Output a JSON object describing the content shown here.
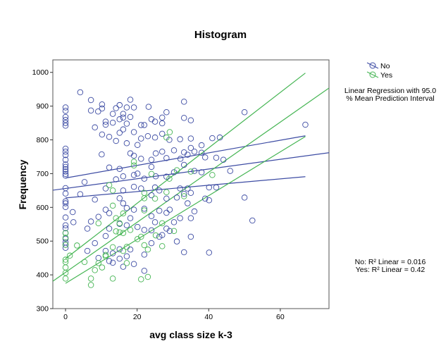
{
  "chart_data": {
    "type": "scatter",
    "title": "Histogram",
    "xlabel": "avg class size k-3",
    "ylabel": "Frequency",
    "xlim": [
      -3.55,
      73.6
    ],
    "ylim": [
      300,
      1037
    ],
    "xticks": [
      0,
      20,
      40,
      60
    ],
    "yticks": [
      300,
      400,
      500,
      600,
      700,
      800,
      900,
      1000
    ],
    "grid": false,
    "legend_placement": "top-right",
    "fit_legend": "Linear Regression with 95.0\n% Mean Prediction Interval",
    "r2_annotations": [
      "No: R² Linear = 0.016",
      "Yes: R² Linear = 0.42"
    ],
    "series": [
      {
        "name": "No",
        "color": "#3c4ba3",
        "marker": "open-circle",
        "fit": {
          "intercept": 656,
          "slope": 1.44,
          "ci_lower": [
            [
              0,
              628
            ],
            [
              67,
              691
            ]
          ],
          "ci_upper": [
            [
              0,
              687
            ],
            [
              67,
              812
            ]
          ]
        },
        "points": [
          [
            0,
            896
          ],
          [
            0,
            886
          ],
          [
            0,
            868
          ],
          [
            0,
            859
          ],
          [
            0,
            850
          ],
          [
            0,
            842
          ],
          [
            0,
            774
          ],
          [
            0,
            765
          ],
          [
            0,
            755
          ],
          [
            0,
            741
          ],
          [
            0,
            727
          ],
          [
            0,
            720
          ],
          [
            0,
            713
          ],
          [
            0,
            706
          ],
          [
            0,
            699
          ],
          [
            0,
            694
          ],
          [
            0,
            657
          ],
          [
            0,
            641
          ],
          [
            0,
            618
          ],
          [
            0,
            612
          ],
          [
            0,
            601
          ],
          [
            0,
            570
          ],
          [
            0,
            547
          ],
          [
            0,
            538
          ],
          [
            0,
            524
          ],
          [
            0,
            507
          ],
          [
            0,
            496
          ],
          [
            0,
            489
          ],
          [
            0,
            480
          ],
          [
            4.1,
            941
          ],
          [
            7.1,
            918
          ],
          [
            7.1,
            887
          ],
          [
            9.1,
            884
          ],
          [
            10.2,
            905
          ],
          [
            10.2,
            893
          ],
          [
            8.2,
            837
          ],
          [
            10.2,
            816
          ],
          [
            12.2,
            809
          ],
          [
            11.2,
            854
          ],
          [
            11.2,
            845
          ],
          [
            13.2,
            877
          ],
          [
            13.2,
            851
          ],
          [
            14.1,
            797
          ],
          [
            15.1,
            903
          ],
          [
            14.1,
            894
          ],
          [
            15.1,
            861
          ],
          [
            16.1,
            877
          ],
          [
            16.1,
            866
          ],
          [
            17.1,
            896
          ],
          [
            18.1,
            919
          ],
          [
            18.1,
            868
          ],
          [
            17.1,
            848
          ],
          [
            19.1,
            896
          ],
          [
            19.1,
            823
          ],
          [
            15.1,
            821
          ],
          [
            16.1,
            831
          ],
          [
            21.1,
            844
          ],
          [
            22,
            844
          ],
          [
            23.2,
            898
          ],
          [
            24,
            861
          ],
          [
            25,
            854
          ],
          [
            21.1,
            804
          ],
          [
            23,
            811
          ],
          [
            25,
            807
          ],
          [
            27,
            866
          ],
          [
            27,
            849
          ],
          [
            28.2,
            882
          ],
          [
            27,
            818
          ],
          [
            29,
            800
          ],
          [
            33.1,
            913
          ],
          [
            33.1,
            865
          ],
          [
            35,
            858
          ],
          [
            32,
            802
          ],
          [
            35,
            804
          ],
          [
            41,
            805
          ],
          [
            43.1,
            807
          ],
          [
            50,
            882
          ],
          [
            67,
            845
          ],
          [
            10.1,
            757
          ],
          [
            17.1,
            790
          ],
          [
            18.1,
            760
          ],
          [
            19.1,
            753
          ],
          [
            20.1,
            785
          ],
          [
            21.1,
            744
          ],
          [
            24,
            741
          ],
          [
            24,
            720
          ],
          [
            25.2,
            760
          ],
          [
            27,
            765
          ],
          [
            28.2,
            746
          ],
          [
            30.3,
            769
          ],
          [
            32.1,
            744
          ],
          [
            33.1,
            763
          ],
          [
            34.1,
            756
          ],
          [
            35,
            776
          ],
          [
            36,
            765
          ],
          [
            38,
            784
          ],
          [
            38,
            762
          ],
          [
            39,
            748
          ],
          [
            42.1,
            747
          ],
          [
            44.1,
            741
          ],
          [
            12.2,
            718
          ],
          [
            15.1,
            714
          ],
          [
            14.1,
            683
          ],
          [
            16.1,
            692
          ],
          [
            19.1,
            696
          ],
          [
            20.1,
            700
          ],
          [
            22,
            685
          ],
          [
            25.2,
            692
          ],
          [
            28.2,
            691
          ],
          [
            30.3,
            704
          ],
          [
            33.1,
            726
          ],
          [
            36,
            708
          ],
          [
            38,
            704
          ],
          [
            46,
            708
          ],
          [
            5.3,
            675
          ],
          [
            11.2,
            656
          ],
          [
            16.1,
            650
          ],
          [
            19.1,
            661
          ],
          [
            21.1,
            656
          ],
          [
            25,
            659
          ],
          [
            26.2,
            650
          ],
          [
            32,
            656
          ],
          [
            34.1,
            656
          ],
          [
            40.1,
            659
          ],
          [
            42.1,
            659
          ],
          [
            4.1,
            639
          ],
          [
            8.2,
            623
          ],
          [
            15.1,
            627
          ],
          [
            16.1,
            612
          ],
          [
            24,
            636
          ],
          [
            28.2,
            626
          ],
          [
            31.1,
            629
          ],
          [
            33.1,
            640
          ],
          [
            35,
            643
          ],
          [
            39,
            626
          ],
          [
            40.1,
            621
          ],
          [
            50,
            629
          ],
          [
            2,
            586
          ],
          [
            11.2,
            593
          ],
          [
            12.2,
            583
          ],
          [
            17.1,
            598
          ],
          [
            19.1,
            593
          ],
          [
            22,
            596
          ],
          [
            24,
            574
          ],
          [
            26.2,
            590
          ],
          [
            28.2,
            584
          ],
          [
            29.1,
            593
          ],
          [
            32,
            568
          ],
          [
            34.1,
            612
          ],
          [
            36,
            588
          ],
          [
            35,
            568
          ],
          [
            52.2,
            561
          ],
          [
            2.2,
            556
          ],
          [
            6.1,
            537
          ],
          [
            7.1,
            558
          ],
          [
            9.2,
            572
          ],
          [
            11.2,
            515
          ],
          [
            12.2,
            537
          ],
          [
            15.1,
            551
          ],
          [
            17.1,
            547
          ],
          [
            18.1,
            568
          ],
          [
            20.1,
            542
          ],
          [
            22,
            533
          ],
          [
            24,
            532
          ],
          [
            25,
            556
          ],
          [
            26.2,
            513
          ],
          [
            27,
            518
          ],
          [
            28.2,
            537
          ],
          [
            29.1,
            530
          ],
          [
            30.3,
            556
          ],
          [
            31.1,
            499
          ],
          [
            35,
            513
          ],
          [
            8.2,
            494
          ],
          [
            9.2,
            450
          ],
          [
            11.2,
            471
          ],
          [
            13.2,
            464
          ],
          [
            15.1,
            476
          ],
          [
            16.1,
            424
          ],
          [
            17.1,
            455
          ],
          [
            18.1,
            475
          ],
          [
            12.2,
            441
          ],
          [
            13.2,
            436
          ],
          [
            19.1,
            432
          ],
          [
            22,
            460
          ],
          [
            24,
            494
          ],
          [
            22,
            412
          ],
          [
            33.1,
            467
          ],
          [
            40.1,
            466
          ],
          [
            15.1,
            448
          ],
          [
            6.1,
            471
          ]
        ]
      },
      {
        "name": "Yes",
        "color": "#45b553",
        "marker": "open-circle",
        "fit": {
          "intercept": 407.5,
          "slope": 7.42,
          "ci_lower": [
            [
              0,
              375
            ],
            [
              67,
              810
            ]
          ],
          "ci_upper": [
            [
              0,
              448
            ],
            [
              67,
              998
            ]
          ]
        },
        "points": [
          [
            0,
            438
          ],
          [
            0,
            422
          ],
          [
            0,
            406
          ],
          [
            0,
            389
          ],
          [
            0,
            445
          ],
          [
            0,
            524
          ],
          [
            0,
            510
          ],
          [
            0,
            489
          ],
          [
            1.2,
            457
          ],
          [
            3.2,
            487
          ],
          [
            5.3,
            438
          ],
          [
            7.1,
            389
          ],
          [
            7.1,
            370
          ],
          [
            8.2,
            414
          ],
          [
            9.2,
            553
          ],
          [
            9.2,
            435
          ],
          [
            10.2,
            422
          ],
          [
            11.2,
            455
          ],
          [
            12.2,
            666
          ],
          [
            13.2,
            650
          ],
          [
            13.2,
            605
          ],
          [
            13.2,
            389
          ],
          [
            14.1,
            568
          ],
          [
            14.1,
            529
          ],
          [
            15.1,
            553
          ],
          [
            16.1,
            582
          ],
          [
            15.1,
            526
          ],
          [
            16.1,
            524
          ],
          [
            17.1,
            483
          ],
          [
            17.1,
            435
          ],
          [
            19.1,
            724
          ],
          [
            20.1,
            506
          ],
          [
            21.1,
            513
          ],
          [
            22,
            643
          ],
          [
            22,
            627
          ],
          [
            22,
            591
          ],
          [
            22,
            488
          ],
          [
            23,
            475
          ],
          [
            21.1,
            387
          ],
          [
            23,
            394
          ],
          [
            24,
            699
          ],
          [
            25,
            626
          ],
          [
            25.2,
            517
          ],
          [
            27,
            553
          ],
          [
            27,
            485
          ],
          [
            28.2,
            645
          ],
          [
            28.2,
            807
          ],
          [
            29.1,
            823
          ],
          [
            29,
            685
          ],
          [
            30.3,
            530
          ],
          [
            31.1,
            710
          ],
          [
            33.1,
            633
          ],
          [
            35,
            706
          ],
          [
            41,
            696
          ],
          [
            13.2,
            482
          ],
          [
            16.1,
            471
          ],
          [
            11.2,
            459
          ],
          [
            18.1,
            533
          ],
          [
            19.1,
            735
          ]
        ]
      }
    ]
  }
}
